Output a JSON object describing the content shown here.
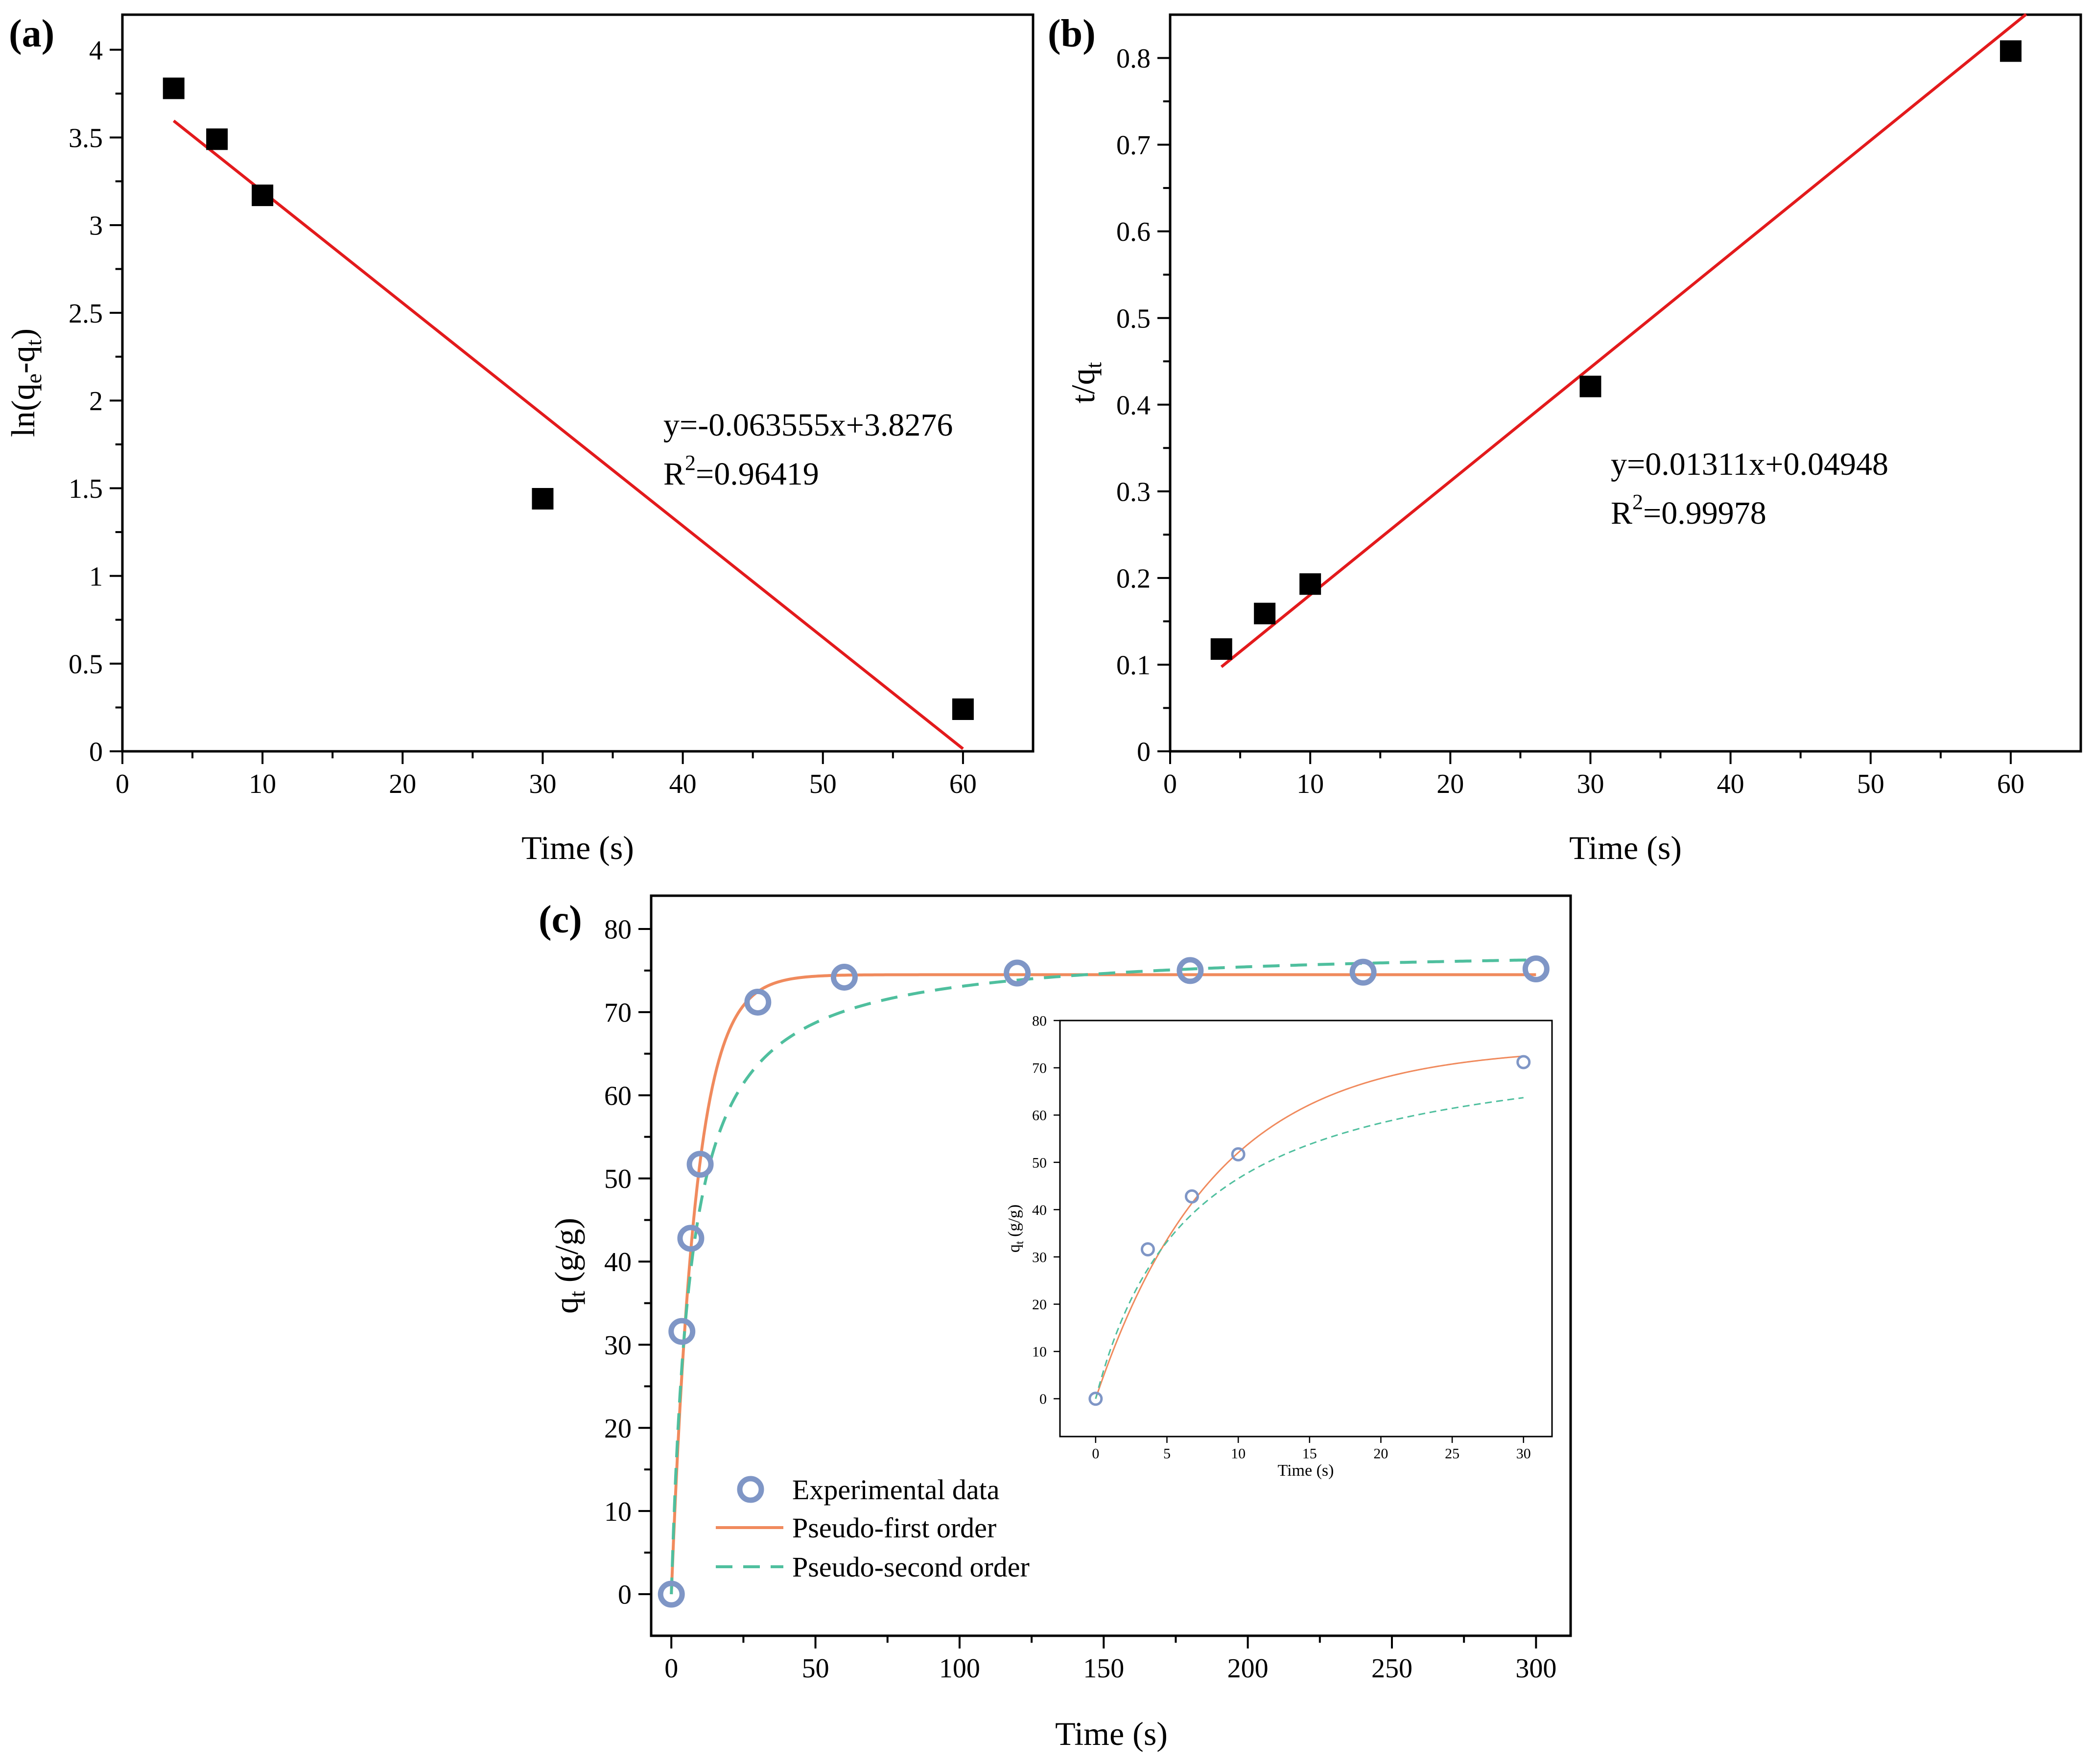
{
  "chart_data": [
    {
      "panel": "(a)",
      "type": "scatter",
      "xlabel": "Time (s)",
      "ylabel": "ln(q_e-q_t)",
      "xlim": [
        0,
        65
      ],
      "ylim": [
        0,
        4.2
      ],
      "x_ticks": [
        "0",
        "10",
        "20",
        "30",
        "40",
        "50",
        "60"
      ],
      "y_ticks": [
        "0",
        "0.5",
        "1",
        "1.5",
        "2",
        "2.5",
        "3",
        "3.5",
        "4"
      ],
      "points": {
        "x": [
          3.66,
          6.75,
          10,
          30,
          60
        ],
        "y": [
          3.78,
          3.49,
          3.17,
          1.44,
          0.24
        ]
      },
      "fit": {
        "slope": -0.063555,
        "intercept": 3.8276,
        "x_range": [
          3.66,
          60
        ]
      },
      "equation": "y=-0.063555x+3.8276",
      "r2_prefix": "R",
      "r2_exp": "2",
      "r2_value": "=0.96419"
    },
    {
      "panel": "(b)",
      "type": "scatter",
      "xlabel": "Time (s)",
      "ylabel": "t/q_t",
      "xlim": [
        0,
        65
      ],
      "ylim": [
        0,
        0.85
      ],
      "x_ticks": [
        "0",
        "10",
        "20",
        "30",
        "40",
        "50",
        "60"
      ],
      "y_ticks": [
        "0",
        "0.1",
        "0.2",
        "0.3",
        "0.4",
        "0.5",
        "0.6",
        "0.7",
        "0.8"
      ],
      "points": {
        "x": [
          3.66,
          6.75,
          10,
          30,
          60
        ],
        "y": [
          0.118,
          0.159,
          0.193,
          0.421,
          0.808
        ]
      },
      "fit": {
        "slope": 0.01311,
        "intercept": 0.04948,
        "x_range": [
          3.66,
          61.1
        ]
      },
      "equation": "y=0.01311x+0.04948",
      "r2_prefix": "R",
      "r2_exp": "2",
      "r2_value": "=0.99978"
    },
    {
      "panel": "(c)",
      "type": "line",
      "xlabel": "Time (s)",
      "ylabel": "q_t (g/g)",
      "xlim": [
        -7,
        312
      ],
      "ylim": [
        -5,
        84
      ],
      "x_ticks": [
        "0",
        "50",
        "100",
        "150",
        "200",
        "250",
        "300"
      ],
      "y_ticks": [
        "0",
        "10",
        "20",
        "30",
        "40",
        "50",
        "60",
        "70",
        "80"
      ],
      "series": [
        {
          "name": "Experimental data",
          "type": "scatter",
          "x": [
            0,
            3.66,
            6.75,
            10,
            30,
            60,
            120,
            180,
            240,
            300
          ],
          "y": [
            0,
            31.6,
            42.8,
            51.7,
            71.2,
            74.2,
            74.7,
            75.0,
            74.8,
            75.2
          ]
        },
        {
          "name": "Pseudo-first order",
          "type": "line",
          "model": "qe*(1-exp(-k*t))",
          "qe": 74.5,
          "k": 0.12
        },
        {
          "name": "Pseudo-second order",
          "type": "line",
          "model": "qe^2*k*t/(1+qe*k*t)",
          "qe": 78.0,
          "k": 0.0019
        }
      ],
      "colors": {
        "experimental": "#7f96c6",
        "first_order": "#f08a5d",
        "second_order": "#4fbf9e",
        "fit_line": "#e31a1c"
      },
      "inset": {
        "xlabel": "Time (s)",
        "ylabel": "q_t (g/g)",
        "xlim": [
          -2.5,
          32
        ],
        "ylim": [
          -8,
          80
        ],
        "x_ticks": [
          "0",
          "5",
          "10",
          "15",
          "20",
          "25",
          "30"
        ],
        "y_ticks": [
          "0",
          "10",
          "20",
          "30",
          "40",
          "50",
          "60",
          "70",
          "80"
        ],
        "points": {
          "x": [
            0,
            3.66,
            6.75,
            10,
            30
          ],
          "y": [
            0,
            31.6,
            42.8,
            51.7,
            71.2
          ]
        }
      }
    }
  ]
}
